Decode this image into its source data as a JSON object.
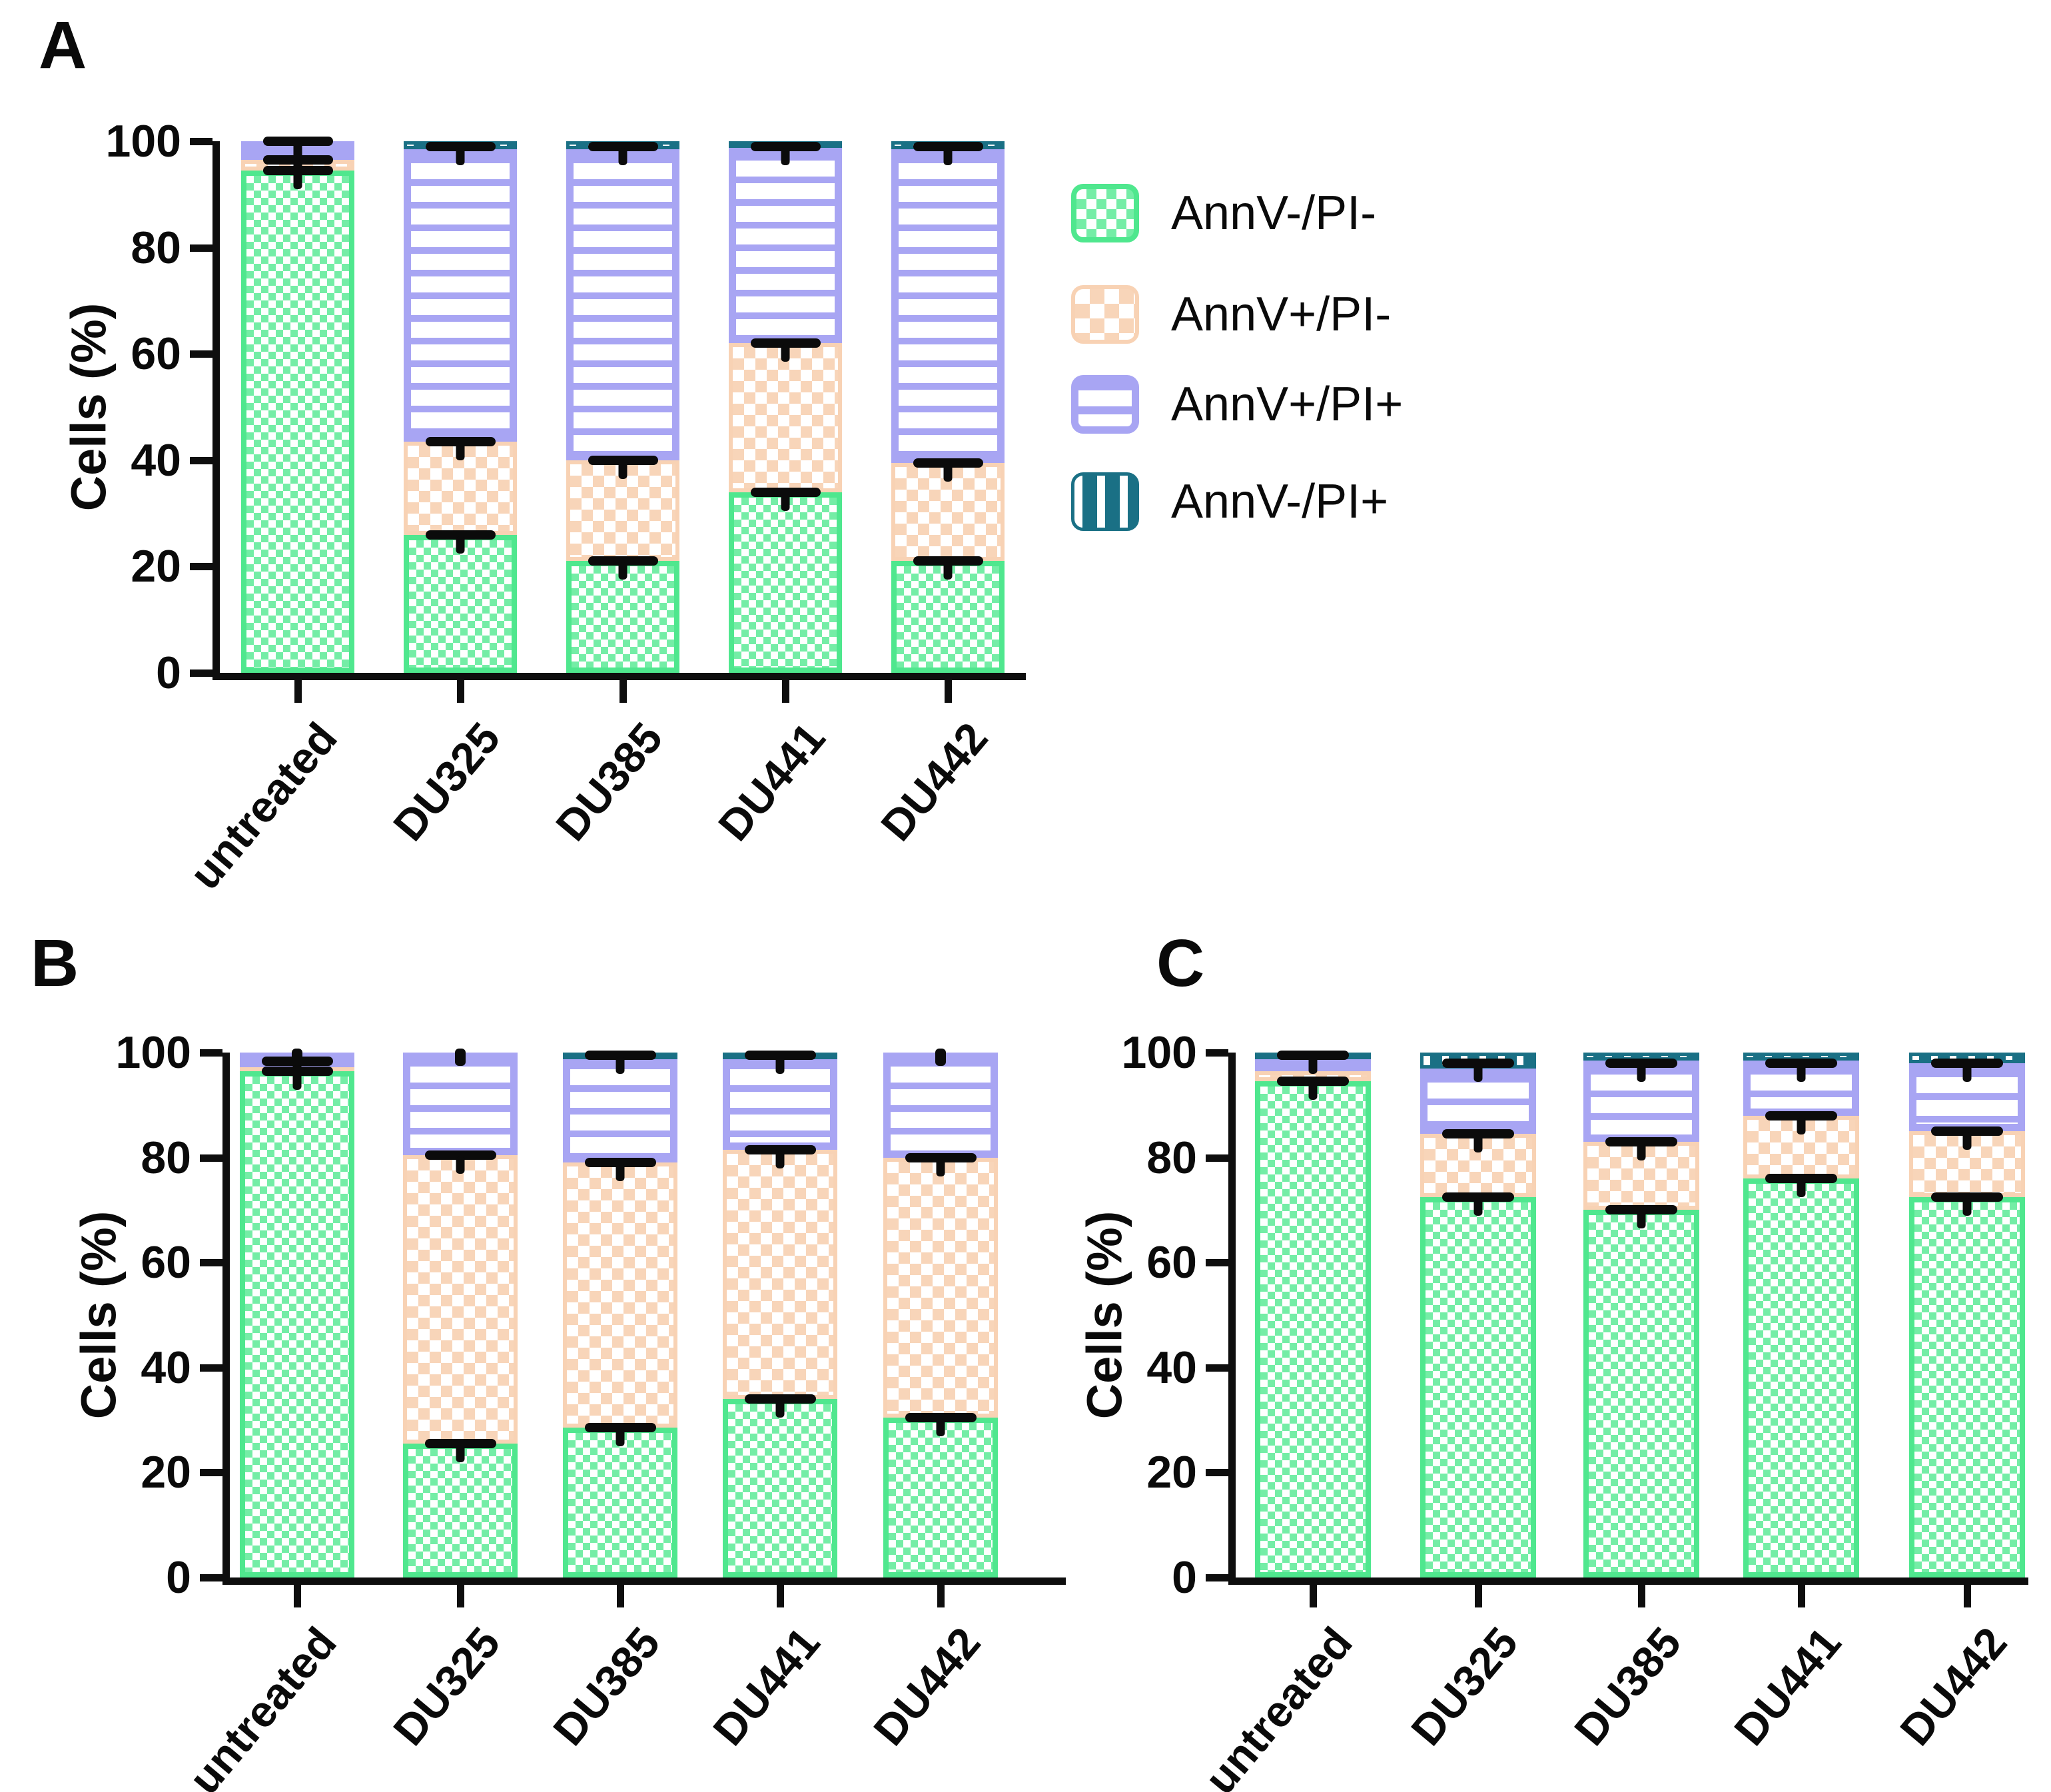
{
  "colors": {
    "green_border": "#4fe78e",
    "green_fill": "#74eda6",
    "peach_border": "#f8d2b4",
    "peach_fill": "#f8d5b9",
    "lavender": "#a8a5f3",
    "teal": "#1a7085",
    "error_bar": "#0b0b0b",
    "axis": "#0e0e0e"
  },
  "legend": {
    "items": [
      {
        "label": "AnnV-/PI-",
        "pattern": "green-checker"
      },
      {
        "label": "AnnV+/PI-",
        "pattern": "peach-checker"
      },
      {
        "label": "AnnV+/PI+",
        "pattern": "lavender-hstripe"
      },
      {
        "label": "AnnV-/PI+",
        "pattern": "teal-vstripe"
      }
    ]
  },
  "chart_data": [
    {
      "type": "bar",
      "stacked": true,
      "panel": "A",
      "title": "",
      "xlabel": "",
      "ylabel": "Cells (%)",
      "ylim": [
        0,
        100
      ],
      "yticks": [
        0,
        20,
        40,
        60,
        80,
        100
      ],
      "grid": false,
      "legend_position": "right",
      "categories": [
        "untreated",
        "DU325",
        "DU385",
        "DU441",
        "DU442"
      ],
      "series": [
        {
          "name": "AnnV-/PI-",
          "pattern": "green-checker",
          "values": [
            94.5,
            26,
            21,
            34,
            21
          ]
        },
        {
          "name": "AnnV+/PI-",
          "pattern": "peach-checker",
          "values": [
            2,
            17.5,
            19,
            28,
            18.5
          ]
        },
        {
          "name": "AnnV+/PI+",
          "pattern": "lavender-hstripe",
          "values": [
            3.5,
            55,
            58.5,
            37,
            59
          ]
        },
        {
          "name": "AnnV-/PI+",
          "pattern": "teal-vstripe",
          "values": [
            0,
            1.5,
            1.5,
            1,
            1.5
          ]
        }
      ],
      "error_marks": [
        [
          94.5,
          96.5,
          100
        ],
        [
          26,
          43.5,
          99
        ],
        [
          21,
          40,
          99
        ],
        [
          34,
          62,
          99
        ],
        [
          21,
          39.5,
          99
        ]
      ],
      "dot_marks": [
        [],
        [],
        [],
        [],
        []
      ]
    },
    {
      "type": "bar",
      "stacked": true,
      "panel": "B",
      "title": "",
      "xlabel": "",
      "ylabel": "Cells (%)",
      "ylim": [
        0,
        100
      ],
      "yticks": [
        0,
        20,
        40,
        60,
        80,
        100
      ],
      "grid": false,
      "legend_position": "none",
      "categories": [
        "untreated",
        "DU325",
        "DU385",
        "DU441",
        "DU442"
      ],
      "series": [
        {
          "name": "AnnV-/PI-",
          "pattern": "green-checker",
          "values": [
            96.5,
            25.5,
            28.5,
            34,
            30.5
          ]
        },
        {
          "name": "AnnV+/PI-",
          "pattern": "peach-checker",
          "values": [
            2.5,
            55,
            50.5,
            47.5,
            49.5
          ]
        },
        {
          "name": "AnnV+/PI+",
          "pattern": "lavender-hstripe",
          "values": [
            1,
            19.5,
            20.5,
            18,
            20
          ]
        },
        {
          "name": "AnnV-/PI+",
          "pattern": "teal-vstripe",
          "values": [
            0,
            0,
            0.5,
            0.5,
            0
          ]
        }
      ],
      "error_marks": [
        [
          96.5,
          98.3
        ],
        [
          25.5,
          80.5
        ],
        [
          28.5,
          79,
          99.5
        ],
        [
          34,
          81.5,
          99.5
        ],
        [
          30.5,
          80
        ]
      ],
      "dot_marks": [
        [
          100
        ],
        [
          100
        ],
        [],
        [],
        [
          100
        ]
      ]
    },
    {
      "type": "bar",
      "stacked": true,
      "panel": "C",
      "title": "",
      "xlabel": "",
      "ylabel": "Cells (%)",
      "ylim": [
        0,
        100
      ],
      "yticks": [
        0,
        20,
        40,
        60,
        80,
        100
      ],
      "grid": false,
      "legend_position": "none",
      "categories": [
        "untreated",
        "DU325",
        "DU385",
        "DU441",
        "DU442"
      ],
      "series": [
        {
          "name": "AnnV-/PI-",
          "pattern": "green-checker",
          "values": [
            94.5,
            72.5,
            70,
            76,
            72.5
          ]
        },
        {
          "name": "AnnV+/PI-",
          "pattern": "peach-checker",
          "values": [
            2,
            12,
            13,
            12,
            12.5
          ]
        },
        {
          "name": "AnnV+/PI+",
          "pattern": "lavender-hstripe",
          "values": [
            3,
            12.5,
            15.5,
            10.5,
            13
          ]
        },
        {
          "name": "AnnV-/PI+",
          "pattern": "teal-vstripe",
          "values": [
            0.5,
            3,
            1.5,
            1.5,
            2
          ]
        }
      ],
      "error_marks": [
        [
          94.5,
          99.5
        ],
        [
          72.5,
          84.5,
          98
        ],
        [
          70,
          83,
          98
        ],
        [
          76,
          88,
          98
        ],
        [
          72.5,
          85,
          98
        ]
      ],
      "dot_marks": [
        [],
        [],
        [],
        [],
        []
      ]
    }
  ]
}
